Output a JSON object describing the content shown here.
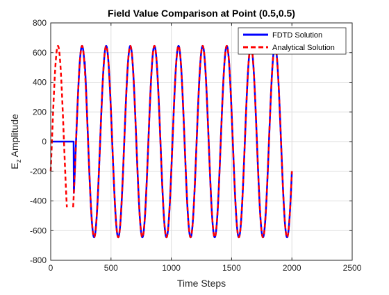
{
  "chart_data": {
    "type": "line",
    "title": "Field Value Comparison at Point (0.5,0.5)",
    "xlabel": "Time Steps",
    "ylabel": {
      "base": "E",
      "subscript": "z",
      "rest": " Amplitude"
    },
    "xlim": [
      0,
      2500
    ],
    "ylim": [
      -800,
      800
    ],
    "xticks": [
      0,
      500,
      1000,
      1500,
      2000,
      2500
    ],
    "yticks": [
      -800,
      -600,
      -400,
      -200,
      0,
      200,
      400,
      600,
      800
    ],
    "grid": true,
    "legend_position": "top-right",
    "series": [
      {
        "name": "FDTD Solution",
        "color": "#0000ff",
        "style": "solid",
        "model": {
          "kind": "delayed-sinusoid",
          "x_start": 0,
          "x_end": 2000,
          "step": 2,
          "flat_until": 190,
          "flat_value": 0,
          "amplitude": 645,
          "period": 200,
          "phase_offset": 10,
          "first_peak_amplitude": 700
        }
      },
      {
        "name": "Analytical Solution",
        "color": "#ff0000",
        "style": "dashed",
        "model": {
          "kind": "sinusoid",
          "x_start": 0,
          "x_end": 2000,
          "step": 2,
          "amplitude": 645,
          "period": 200,
          "phase_offset": 10,
          "blank_start": 135,
          "blank_end": 185
        }
      }
    ]
  }
}
